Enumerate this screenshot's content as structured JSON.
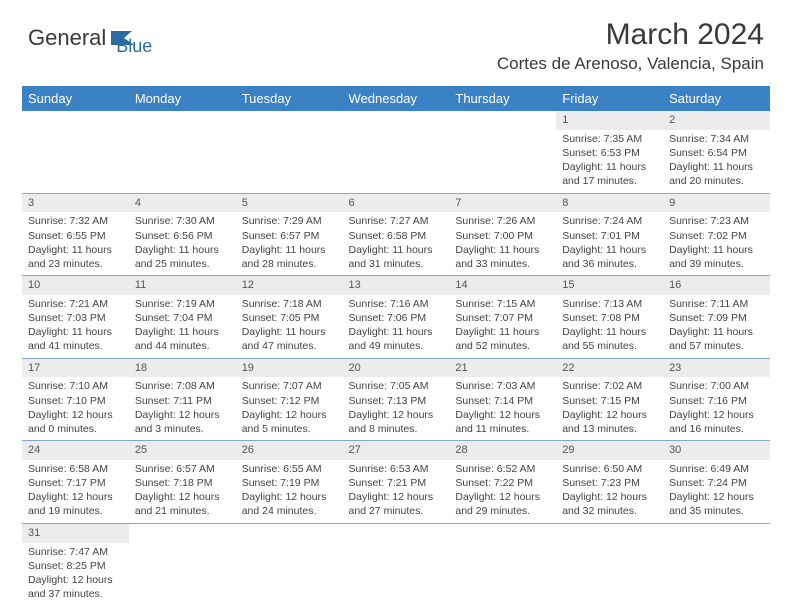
{
  "brand": {
    "part1": "General",
    "part2": "Blue"
  },
  "title": "March 2024",
  "location": "Cortes de Arenoso, Valencia, Spain",
  "colors": {
    "header_bg": "#3b82c4",
    "header_text": "#ffffff",
    "daynum_bg": "#ececec",
    "border": "#7fa8d4",
    "brand_blue": "#2d6ca2"
  },
  "day_headers": [
    "Sunday",
    "Monday",
    "Tuesday",
    "Wednesday",
    "Thursday",
    "Friday",
    "Saturday"
  ],
  "weeks": [
    [
      null,
      null,
      null,
      null,
      null,
      {
        "n": "1",
        "sr": "Sunrise: 7:35 AM",
        "ss": "Sunset: 6:53 PM",
        "d1": "Daylight: 11 hours",
        "d2": "and 17 minutes."
      },
      {
        "n": "2",
        "sr": "Sunrise: 7:34 AM",
        "ss": "Sunset: 6:54 PM",
        "d1": "Daylight: 11 hours",
        "d2": "and 20 minutes."
      }
    ],
    [
      {
        "n": "3",
        "sr": "Sunrise: 7:32 AM",
        "ss": "Sunset: 6:55 PM",
        "d1": "Daylight: 11 hours",
        "d2": "and 23 minutes."
      },
      {
        "n": "4",
        "sr": "Sunrise: 7:30 AM",
        "ss": "Sunset: 6:56 PM",
        "d1": "Daylight: 11 hours",
        "d2": "and 25 minutes."
      },
      {
        "n": "5",
        "sr": "Sunrise: 7:29 AM",
        "ss": "Sunset: 6:57 PM",
        "d1": "Daylight: 11 hours",
        "d2": "and 28 minutes."
      },
      {
        "n": "6",
        "sr": "Sunrise: 7:27 AM",
        "ss": "Sunset: 6:58 PM",
        "d1": "Daylight: 11 hours",
        "d2": "and 31 minutes."
      },
      {
        "n": "7",
        "sr": "Sunrise: 7:26 AM",
        "ss": "Sunset: 7:00 PM",
        "d1": "Daylight: 11 hours",
        "d2": "and 33 minutes."
      },
      {
        "n": "8",
        "sr": "Sunrise: 7:24 AM",
        "ss": "Sunset: 7:01 PM",
        "d1": "Daylight: 11 hours",
        "d2": "and 36 minutes."
      },
      {
        "n": "9",
        "sr": "Sunrise: 7:23 AM",
        "ss": "Sunset: 7:02 PM",
        "d1": "Daylight: 11 hours",
        "d2": "and 39 minutes."
      }
    ],
    [
      {
        "n": "10",
        "sr": "Sunrise: 7:21 AM",
        "ss": "Sunset: 7:03 PM",
        "d1": "Daylight: 11 hours",
        "d2": "and 41 minutes."
      },
      {
        "n": "11",
        "sr": "Sunrise: 7:19 AM",
        "ss": "Sunset: 7:04 PM",
        "d1": "Daylight: 11 hours",
        "d2": "and 44 minutes."
      },
      {
        "n": "12",
        "sr": "Sunrise: 7:18 AM",
        "ss": "Sunset: 7:05 PM",
        "d1": "Daylight: 11 hours",
        "d2": "and 47 minutes."
      },
      {
        "n": "13",
        "sr": "Sunrise: 7:16 AM",
        "ss": "Sunset: 7:06 PM",
        "d1": "Daylight: 11 hours",
        "d2": "and 49 minutes."
      },
      {
        "n": "14",
        "sr": "Sunrise: 7:15 AM",
        "ss": "Sunset: 7:07 PM",
        "d1": "Daylight: 11 hours",
        "d2": "and 52 minutes."
      },
      {
        "n": "15",
        "sr": "Sunrise: 7:13 AM",
        "ss": "Sunset: 7:08 PM",
        "d1": "Daylight: 11 hours",
        "d2": "and 55 minutes."
      },
      {
        "n": "16",
        "sr": "Sunrise: 7:11 AM",
        "ss": "Sunset: 7:09 PM",
        "d1": "Daylight: 11 hours",
        "d2": "and 57 minutes."
      }
    ],
    [
      {
        "n": "17",
        "sr": "Sunrise: 7:10 AM",
        "ss": "Sunset: 7:10 PM",
        "d1": "Daylight: 12 hours",
        "d2": "and 0 minutes."
      },
      {
        "n": "18",
        "sr": "Sunrise: 7:08 AM",
        "ss": "Sunset: 7:11 PM",
        "d1": "Daylight: 12 hours",
        "d2": "and 3 minutes."
      },
      {
        "n": "19",
        "sr": "Sunrise: 7:07 AM",
        "ss": "Sunset: 7:12 PM",
        "d1": "Daylight: 12 hours",
        "d2": "and 5 minutes."
      },
      {
        "n": "20",
        "sr": "Sunrise: 7:05 AM",
        "ss": "Sunset: 7:13 PM",
        "d1": "Daylight: 12 hours",
        "d2": "and 8 minutes."
      },
      {
        "n": "21",
        "sr": "Sunrise: 7:03 AM",
        "ss": "Sunset: 7:14 PM",
        "d1": "Daylight: 12 hours",
        "d2": "and 11 minutes."
      },
      {
        "n": "22",
        "sr": "Sunrise: 7:02 AM",
        "ss": "Sunset: 7:15 PM",
        "d1": "Daylight: 12 hours",
        "d2": "and 13 minutes."
      },
      {
        "n": "23",
        "sr": "Sunrise: 7:00 AM",
        "ss": "Sunset: 7:16 PM",
        "d1": "Daylight: 12 hours",
        "d2": "and 16 minutes."
      }
    ],
    [
      {
        "n": "24",
        "sr": "Sunrise: 6:58 AM",
        "ss": "Sunset: 7:17 PM",
        "d1": "Daylight: 12 hours",
        "d2": "and 19 minutes."
      },
      {
        "n": "25",
        "sr": "Sunrise: 6:57 AM",
        "ss": "Sunset: 7:18 PM",
        "d1": "Daylight: 12 hours",
        "d2": "and 21 minutes."
      },
      {
        "n": "26",
        "sr": "Sunrise: 6:55 AM",
        "ss": "Sunset: 7:19 PM",
        "d1": "Daylight: 12 hours",
        "d2": "and 24 minutes."
      },
      {
        "n": "27",
        "sr": "Sunrise: 6:53 AM",
        "ss": "Sunset: 7:21 PM",
        "d1": "Daylight: 12 hours",
        "d2": "and 27 minutes."
      },
      {
        "n": "28",
        "sr": "Sunrise: 6:52 AM",
        "ss": "Sunset: 7:22 PM",
        "d1": "Daylight: 12 hours",
        "d2": "and 29 minutes."
      },
      {
        "n": "29",
        "sr": "Sunrise: 6:50 AM",
        "ss": "Sunset: 7:23 PM",
        "d1": "Daylight: 12 hours",
        "d2": "and 32 minutes."
      },
      {
        "n": "30",
        "sr": "Sunrise: 6:49 AM",
        "ss": "Sunset: 7:24 PM",
        "d1": "Daylight: 12 hours",
        "d2": "and 35 minutes."
      }
    ],
    [
      {
        "n": "31",
        "sr": "Sunrise: 7:47 AM",
        "ss": "Sunset: 8:25 PM",
        "d1": "Daylight: 12 hours",
        "d2": "and 37 minutes."
      },
      null,
      null,
      null,
      null,
      null,
      null
    ]
  ]
}
